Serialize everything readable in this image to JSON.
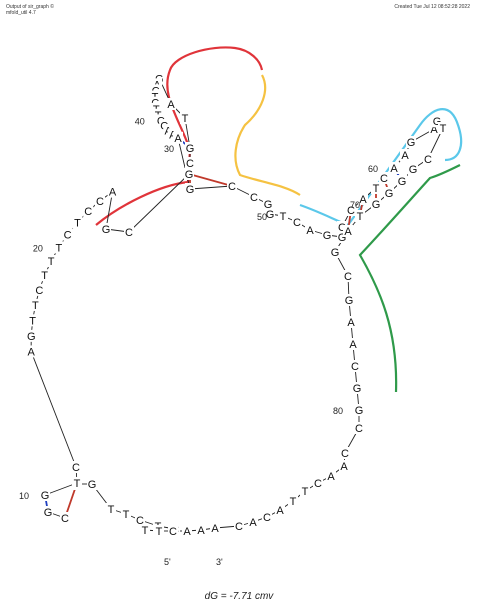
{
  "header": {
    "left_line1": "Output of sir_graph ©",
    "left_line2": "mfold_util 4.7",
    "right_line1": "Created Tue Jul 12 08:52:28 2022"
  },
  "footer": {
    "energy": "dG = -7.71 cmv"
  },
  "sequence": "CTCTTGTCGGTCAGTTCTTTCTCCAGCGCGTAGACTCTTCCAAAGCCGGTCAGGCCATCAAGAGTCGGGGTAGCGAACGGCCAACTTACACAAACTTCCCTCA",
  "five_prime_label": "5'",
  "three_prime_label": "3'",
  "numbers": [
    {
      "label": "10",
      "index": 10
    },
    {
      "label": "20",
      "index": 20
    },
    {
      "label": "30",
      "index": 30
    },
    {
      "label": "40",
      "index": 40
    },
    {
      "label": "50",
      "index": 50
    },
    {
      "label": "60",
      "index": 60
    },
    {
      "label": "70",
      "index": 70
    },
    {
      "label": "80",
      "index": 80
    }
  ],
  "colors": {
    "red": "#e0343a",
    "orange": "#f5c242",
    "cyan": "#5bc8ea",
    "green": "#2f9a4a",
    "pair_gc": "#c0392b",
    "pair_at": "#1f3fbf",
    "backbone": "#222222"
  },
  "highlights": [
    {
      "name": "red-highlight",
      "color": "red"
    },
    {
      "name": "orange-highlight",
      "color": "orange"
    },
    {
      "name": "cyan-highlight",
      "color": "cyan"
    },
    {
      "name": "green-highlight",
      "color": "green"
    }
  ]
}
